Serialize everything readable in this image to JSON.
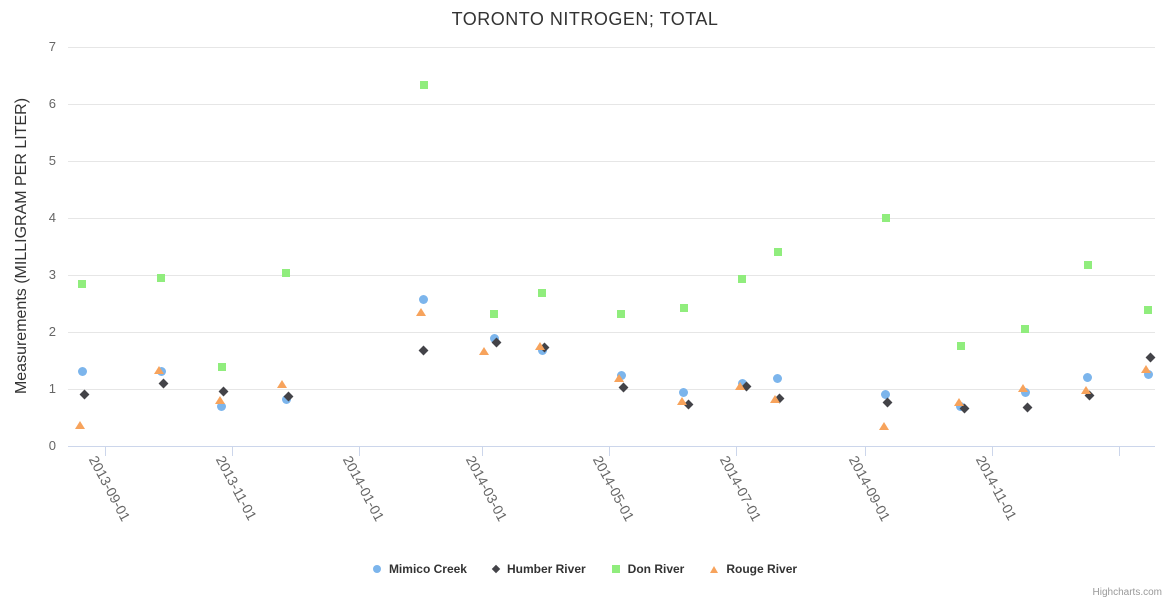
{
  "title": "TORONTO NITROGEN; TOTAL",
  "credit": {
    "label": "Highcharts.com"
  },
  "colors": {
    "grid": "#e6e6e6",
    "axis_line": "#ccd6eb",
    "title_text": "#333333",
    "axis_label_text": "#666666",
    "legend_text": "#333333",
    "credit_text": "#999999"
  },
  "chart_data": {
    "type": "scatter",
    "title": "TORONTO NITROGEN; TOTAL",
    "xlabel": "",
    "ylabel": "Measurements (MILLIGRAM PER LITER)",
    "ylim": [
      0,
      7
    ],
    "grid": true,
    "legend_position": "bottom",
    "y_ticks": [
      0,
      1,
      2,
      3,
      4,
      5,
      6,
      7
    ],
    "x_ticks": [
      {
        "label": "2013-09-01",
        "date": "2013-09-01"
      },
      {
        "label": "2013-11-01",
        "date": "2013-11-01"
      },
      {
        "label": "2014-01-01",
        "date": "2014-01-01"
      },
      {
        "label": "2014-03-01",
        "date": "2014-03-01"
      },
      {
        "label": "2014-05-01",
        "date": "2014-05-01"
      },
      {
        "label": "2014-07-01",
        "date": "2014-07-01"
      },
      {
        "label": "2014-09-01",
        "date": "2014-09-01"
      },
      {
        "label": "2014-11-01",
        "date": "2014-11-01"
      },
      {
        "label": "",
        "date": "2015-01-01"
      }
    ],
    "series": [
      {
        "name": "Mimico Creek",
        "marker": "circle",
        "color": "#7cb5ec",
        "points": [
          {
            "date": "2013-08-21",
            "value": 1.3
          },
          {
            "date": "2013-09-28",
            "value": 1.3
          },
          {
            "date": "2013-10-27",
            "value": 0.7
          },
          {
            "date": "2013-11-27",
            "value": 0.81
          },
          {
            "date": "2014-02-01",
            "value": 2.57
          },
          {
            "date": "2014-03-07",
            "value": 1.88
          },
          {
            "date": "2014-03-30",
            "value": 1.68
          },
          {
            "date": "2014-05-07",
            "value": 1.23
          },
          {
            "date": "2014-06-06",
            "value": 0.94
          },
          {
            "date": "2014-07-04",
            "value": 1.09
          },
          {
            "date": "2014-07-21",
            "value": 1.19
          },
          {
            "date": "2014-09-11",
            "value": 0.91
          },
          {
            "date": "2014-10-17",
            "value": 0.7
          },
          {
            "date": "2014-11-17",
            "value": 0.94
          },
          {
            "date": "2014-12-17",
            "value": 1.21
          },
          {
            "date": "2015-01-15",
            "value": 1.25
          }
        ]
      },
      {
        "name": "Humber River",
        "marker": "diamond",
        "color": "#434348",
        "points": [
          {
            "date": "2013-08-22",
            "value": 0.91
          },
          {
            "date": "2013-09-29",
            "value": 1.1
          },
          {
            "date": "2013-10-28",
            "value": 0.95
          },
          {
            "date": "2013-11-28",
            "value": 0.87
          },
          {
            "date": "2014-02-01",
            "value": 1.67
          },
          {
            "date": "2014-03-08",
            "value": 1.82
          },
          {
            "date": "2014-03-31",
            "value": 1.73
          },
          {
            "date": "2014-05-08",
            "value": 1.02
          },
          {
            "date": "2014-06-08",
            "value": 0.72
          },
          {
            "date": "2014-07-06",
            "value": 1.05
          },
          {
            "date": "2014-07-22",
            "value": 0.83
          },
          {
            "date": "2014-09-12",
            "value": 0.76
          },
          {
            "date": "2014-10-19",
            "value": 0.65
          },
          {
            "date": "2014-11-18",
            "value": 0.68
          },
          {
            "date": "2014-12-18",
            "value": 0.89
          },
          {
            "date": "2015-01-16",
            "value": 1.55
          }
        ]
      },
      {
        "name": "Don River",
        "marker": "square",
        "color": "#90ed7d",
        "points": [
          {
            "date": "2013-08-21",
            "value": 2.85
          },
          {
            "date": "2013-09-28",
            "value": 2.94
          },
          {
            "date": "2013-10-27",
            "value": 1.39
          },
          {
            "date": "2013-11-27",
            "value": 3.03
          },
          {
            "date": "2014-02-01",
            "value": 6.33
          },
          {
            "date": "2014-03-07",
            "value": 2.32
          },
          {
            "date": "2014-03-30",
            "value": 2.68
          },
          {
            "date": "2014-05-07",
            "value": 2.31
          },
          {
            "date": "2014-06-06",
            "value": 2.42
          },
          {
            "date": "2014-07-04",
            "value": 2.93
          },
          {
            "date": "2014-07-21",
            "value": 3.4
          },
          {
            "date": "2014-09-11",
            "value": 4.0
          },
          {
            "date": "2014-10-17",
            "value": 1.75
          },
          {
            "date": "2014-11-17",
            "value": 2.05
          },
          {
            "date": "2014-12-17",
            "value": 3.17
          },
          {
            "date": "2015-01-15",
            "value": 2.39
          }
        ]
      },
      {
        "name": "Rouge River",
        "marker": "triangle",
        "color": "#f7a35c",
        "points": [
          {
            "date": "2013-08-20",
            "value": 0.37
          },
          {
            "date": "2013-09-27",
            "value": 1.34
          },
          {
            "date": "2013-10-26",
            "value": 0.81
          },
          {
            "date": "2013-11-25",
            "value": 1.09
          },
          {
            "date": "2014-01-31",
            "value": 2.35
          },
          {
            "date": "2014-03-02",
            "value": 1.67
          },
          {
            "date": "2014-03-29",
            "value": 1.75
          },
          {
            "date": "2014-05-06",
            "value": 1.2
          },
          {
            "date": "2014-06-05",
            "value": 0.79
          },
          {
            "date": "2014-07-03",
            "value": 1.06
          },
          {
            "date": "2014-07-20",
            "value": 0.83
          },
          {
            "date": "2014-09-10",
            "value": 0.35
          },
          {
            "date": "2014-10-16",
            "value": 0.78
          },
          {
            "date": "2014-11-16",
            "value": 1.01
          },
          {
            "date": "2014-12-16",
            "value": 0.98
          },
          {
            "date": "2015-01-14",
            "value": 1.35
          }
        ]
      }
    ]
  }
}
